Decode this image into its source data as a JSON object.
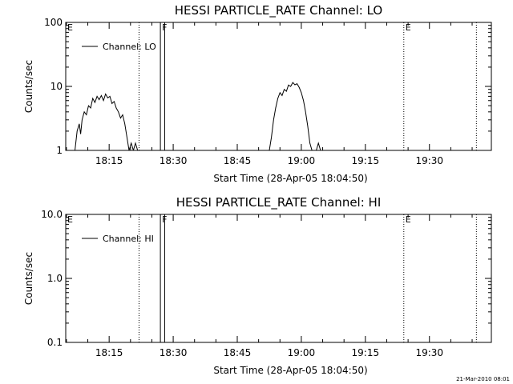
{
  "chart_data": [
    {
      "type": "line",
      "title": "HESSI PARTICLE_RATE Channel: LO",
      "xlabel": "Start Time (28-Apr-05 18:04:50)",
      "ylabel": "Counts/sec",
      "yscale": "log",
      "ylim": [
        1,
        100
      ],
      "yticks": [
        1,
        10,
        100
      ],
      "ytick_labels": [
        "1",
        "10",
        "100"
      ],
      "xlim": [
        "18:04:50",
        "19:44:30"
      ],
      "xticks": [
        "18:15",
        "18:30",
        "18:45",
        "19:00",
        "19:15",
        "19:30"
      ],
      "legend": {
        "label": "Channel: LO",
        "position": "top-left"
      },
      "markers": [
        {
          "label": "E",
          "time": "18:04:50",
          "style": "dotted"
        },
        {
          "label": "",
          "time": "18:22:00",
          "style": "dotted"
        },
        {
          "label": "F",
          "time": "18:27:00",
          "style": "solid"
        },
        {
          "label": "",
          "time": "18:28:00",
          "style": "solid"
        },
        {
          "label": "E",
          "time": "19:24:00",
          "style": "dotted"
        },
        {
          "label": "",
          "time": "19:41:00",
          "style": "dotted"
        }
      ],
      "series": [
        {
          "name": "Channel: LO",
          "segments": [
            [
              [
                "18:07:00",
                1
              ],
              [
                "18:07:30",
                2
              ],
              [
                "18:08:00",
                2.6
              ],
              [
                "18:08:20",
                1.8
              ],
              [
                "18:08:40",
                3.0
              ],
              [
                "18:09:10",
                4.0
              ],
              [
                "18:09:40",
                3.6
              ],
              [
                "18:10:10",
                5.0
              ],
              [
                "18:10:40",
                4.6
              ],
              [
                "18:11:10",
                6.5
              ],
              [
                "18:11:40",
                5.6
              ],
              [
                "18:12:10",
                7.0
              ],
              [
                "18:12:40",
                6.2
              ],
              [
                "18:13:10",
                7.2
              ],
              [
                "18:13:40",
                6.0
              ],
              [
                "18:14:10",
                7.6
              ],
              [
                "18:14:40",
                6.6
              ],
              [
                "18:15:10",
                7.0
              ],
              [
                "18:15:40",
                5.4
              ],
              [
                "18:16:10",
                5.8
              ],
              [
                "18:16:40",
                4.6
              ],
              [
                "18:17:10",
                4.0
              ],
              [
                "18:17:40",
                3.2
              ],
              [
                "18:18:10",
                3.6
              ],
              [
                "18:18:40",
                2.6
              ],
              [
                "18:19:10",
                1.6
              ],
              [
                "18:19:40",
                1.0
              ],
              [
                "18:20:10",
                1.3
              ],
              [
                "18:20:40",
                1.0
              ],
              [
                "18:21:10",
                1.3
              ],
              [
                "18:21:40",
                1.0
              ]
            ],
            [
              [
                "18:52:30",
                1
              ],
              [
                "18:53:00",
                1.6
              ],
              [
                "18:53:30",
                3.0
              ],
              [
                "18:54:00",
                4.6
              ],
              [
                "18:54:30",
                6.5
              ],
              [
                "18:55:00",
                8.0
              ],
              [
                "18:55:30",
                7.2
              ],
              [
                "18:56:00",
                9.0
              ],
              [
                "18:56:30",
                8.4
              ],
              [
                "18:57:00",
                10.5
              ],
              [
                "18:57:30",
                10.0
              ],
              [
                "18:58:00",
                11.5
              ],
              [
                "18:58:30",
                10.6
              ],
              [
                "18:59:00",
                11.0
              ],
              [
                "18:59:30",
                9.6
              ],
              [
                "19:00:00",
                8.0
              ],
              [
                "19:00:30",
                6.0
              ],
              [
                "19:01:00",
                4.0
              ],
              [
                "19:01:30",
                2.4
              ],
              [
                "19:02:00",
                1.3
              ],
              [
                "19:02:30",
                1.0
              ]
            ],
            [
              [
                "19:03:30",
                1.0
              ],
              [
                "19:04:00",
                1.3
              ],
              [
                "19:04:30",
                1.0
              ]
            ]
          ]
        }
      ]
    },
    {
      "type": "line",
      "title": "HESSI PARTICLE_RATE Channel: HI",
      "xlabel": "Start Time (28-Apr-05 18:04:50)",
      "ylabel": "Counts/sec",
      "yscale": "log",
      "ylim": [
        0.1,
        10
      ],
      "yticks": [
        0.1,
        1,
        10
      ],
      "ytick_labels": [
        "0.1",
        "1.0",
        "10.0"
      ],
      "xlim": [
        "18:04:50",
        "19:44:30"
      ],
      "xticks": [
        "18:15",
        "18:30",
        "18:45",
        "19:00",
        "19:15",
        "19:30"
      ],
      "legend": {
        "label": "Channel: HI",
        "position": "top-left"
      },
      "markers": [
        {
          "label": "E",
          "time": "18:04:50",
          "style": "dotted"
        },
        {
          "label": "",
          "time": "18:22:00",
          "style": "dotted"
        },
        {
          "label": "F",
          "time": "18:27:00",
          "style": "solid"
        },
        {
          "label": "",
          "time": "18:28:00",
          "style": "solid"
        },
        {
          "label": "E",
          "time": "19:24:00",
          "style": "dotted"
        },
        {
          "label": "",
          "time": "19:41:00",
          "style": "dotted"
        }
      ],
      "series": [
        {
          "name": "Channel: HI",
          "segments": []
        }
      ]
    }
  ],
  "footer": {
    "timestamp": "21-Mar-2010 08:01"
  }
}
